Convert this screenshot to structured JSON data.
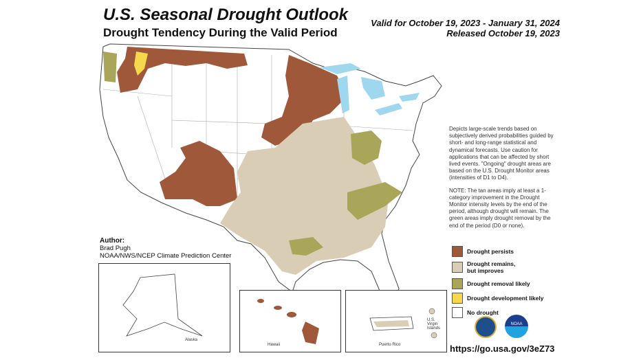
{
  "header": {
    "title": "U.S. Seasonal Drought Outlook",
    "subtitle": "Drought Tendency During the Valid Period",
    "valid": "Valid for October 19, 2023 - January 31, 2024",
    "released": "Released October 19, 2023"
  },
  "description": [
    "Depicts large-scale trends based on subjectively derived probabilities guided by short- and long-range statistical and dynamical forecasts. Use caution for applications that can be affected by short lived events. \"Ongoing\" drought areas are based on the U.S. Drought Monitor areas (intensities of D1 to D4).",
    "NOTE: The tan areas imply at least a 1-category improvement in the Drought Monitor intensity levels by the end of the period, although drought will remain. The green areas imply drought removal by the end of the period (D0 or none)."
  ],
  "legend": [
    {
      "label": "Drought persists",
      "color": "#a0583a"
    },
    {
      "label": "Drought remains, but improves",
      "color": "#d9cdb5"
    },
    {
      "label": "Drought removal likely",
      "color": "#a9a65a"
    },
    {
      "label": "Drought development likely",
      "color": "#f6d84c"
    },
    {
      "label": "No drought",
      "color": "#ffffff"
    }
  ],
  "author": {
    "heading": "Author:",
    "name": "Brad Pugh",
    "org": "NOAA/NWS/NCEP Climate Prediction Center"
  },
  "insets": {
    "alaska": "Alaska",
    "hawaii": "Hawaii",
    "puerto_rico": "Puerto Rico",
    "usvi": "U.S. Virgin Islands"
  },
  "url": "https://go.usa.gov/3eZ73",
  "logos": {
    "noaa": "NOAA"
  },
  "colors": {
    "water": "#9fd8ee",
    "state_border": "#999999"
  }
}
